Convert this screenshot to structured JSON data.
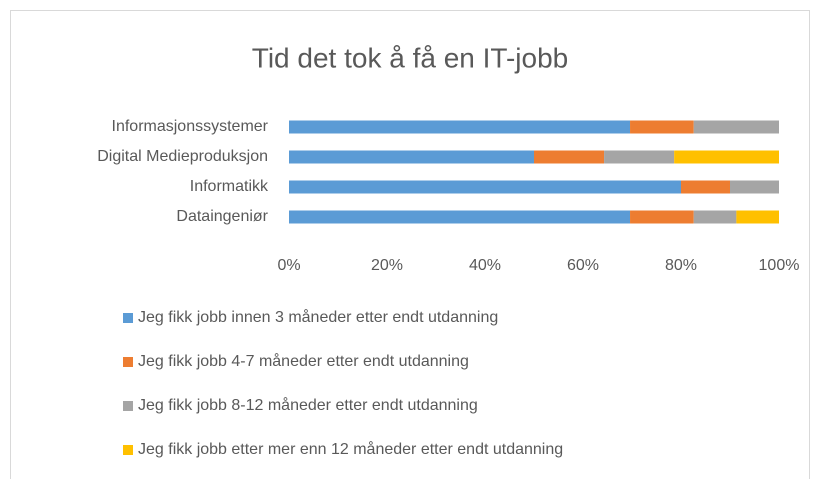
{
  "chart_data": {
    "type": "stacked_bar_100",
    "orientation": "horizontal",
    "title": "Tid det tok å få en IT-jobb",
    "categories": [
      "Informasjonssystemer",
      "Digital Medieproduksjon",
      "Informatikk",
      "Dataingeniør"
    ],
    "series": [
      {
        "name": "Jeg fikk jobb innen 3 måneder etter endt utdanning",
        "color": "#5b9bd5",
        "values": [
          69.6,
          50,
          80,
          69.6
        ]
      },
      {
        "name": "Jeg fikk jobb 4-7 måneder etter endt utdanning",
        "color": "#ed7d31",
        "values": [
          13,
          14.3,
          10,
          13
        ]
      },
      {
        "name": "Jeg fikk jobb 8-12 måneder etter endt utdanning",
        "color": "#a5a5a5",
        "values": [
          17.4,
          14.3,
          10,
          8.7
        ]
      },
      {
        "name": "Jeg fikk jobb etter mer enn 12 måneder etter endt utdanning",
        "color": "#ffc000",
        "values": [
          0,
          21.4,
          0,
          8.7
        ]
      }
    ],
    "xlim": [
      0,
      100
    ],
    "xticks": [
      {
        "value": 0,
        "label": "0%"
      },
      {
        "value": 20,
        "label": "20%"
      },
      {
        "value": 40,
        "label": "40%"
      },
      {
        "value": 60,
        "label": "60%"
      },
      {
        "value": 80,
        "label": "80%"
      },
      {
        "value": 100,
        "label": "100%"
      }
    ],
    "legend": "bottom",
    "grid": false
  }
}
